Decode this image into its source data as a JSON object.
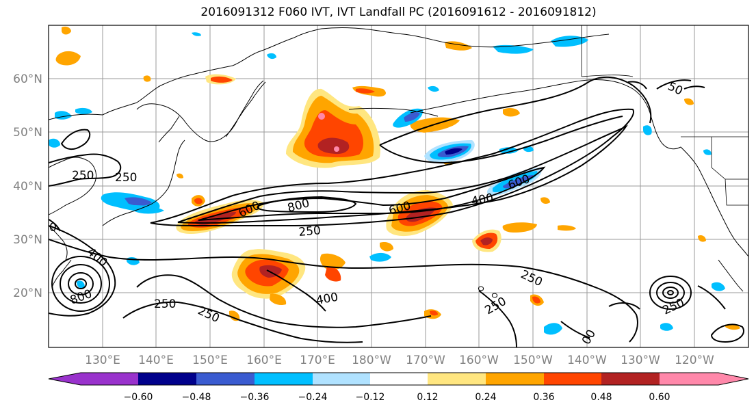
{
  "title": "2016091312 F060 IVT, IVT Landfall PC (2016091612 - 2016091812)",
  "map": {
    "lon_labels": [
      "130°E",
      "140°E",
      "150°E",
      "160°E",
      "170°E",
      "180°W",
      "170°W",
      "160°W",
      "150°W",
      "140°W",
      "130°W",
      "120°W"
    ],
    "lat_labels": [
      "60°N",
      "50°N",
      "40°N",
      "30°N",
      "20°N"
    ],
    "contour_labels": [
      "250",
      "250",
      "250",
      "250",
      "250",
      "250",
      "250",
      "250",
      "400",
      "400",
      "400",
      "600",
      "600",
      "600",
      "800",
      "800",
      "0",
      "00",
      "50"
    ]
  },
  "colorbar": {
    "ticks": [
      "−0.60",
      "−0.48",
      "−0.36",
      "−0.24",
      "−0.12",
      "0.12",
      "0.24",
      "0.36",
      "0.48",
      "0.60"
    ],
    "colors": [
      "#9932cc",
      "#00008b",
      "#3a5bd0",
      "#00bfff",
      "#b0e2ff",
      "#ffffff",
      "#ffe680",
      "#ffa500",
      "#ff4500",
      "#b22222",
      "#ff88aa"
    ]
  }
}
